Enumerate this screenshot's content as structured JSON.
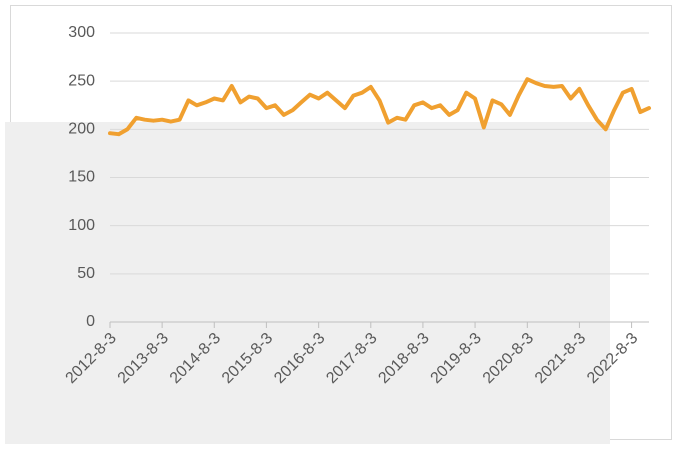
{
  "chart_data": {
    "type": "line",
    "x": [
      "2012-8-3",
      "2012-10-3",
      "2012-12-3",
      "2013-2-3",
      "2013-4-3",
      "2013-6-3",
      "2013-8-3",
      "2013-10-3",
      "2013-12-3",
      "2014-2-3",
      "2014-4-3",
      "2014-6-3",
      "2014-8-3",
      "2014-10-3",
      "2014-12-3",
      "2015-2-3",
      "2015-4-3",
      "2015-6-3",
      "2015-8-3",
      "2015-10-3",
      "2015-12-3",
      "2016-2-3",
      "2016-4-3",
      "2016-6-3",
      "2016-8-3",
      "2016-10-3",
      "2016-12-3",
      "2017-2-3",
      "2017-4-3",
      "2017-6-3",
      "2017-8-3",
      "2017-10-3",
      "2017-12-3",
      "2018-2-3",
      "2018-4-3",
      "2018-6-3",
      "2018-8-3",
      "2018-10-3",
      "2018-12-3",
      "2019-2-3",
      "2019-4-3",
      "2019-6-3",
      "2019-8-3",
      "2019-10-3",
      "2019-12-3",
      "2020-2-3",
      "2020-4-3",
      "2020-6-3",
      "2020-8-3",
      "2020-10-3",
      "2020-12-3",
      "2021-2-3",
      "2021-4-3",
      "2021-6-3",
      "2021-8-3",
      "2021-10-3",
      "2021-12-3",
      "2022-2-3",
      "2022-4-3",
      "2022-6-3",
      "2022-8-3",
      "2022-10-3",
      "2022-12-3"
    ],
    "series": [
      {
        "color": "#f0a030",
        "values": [
          196,
          195,
          200,
          212,
          210,
          209,
          210,
          208,
          210,
          230,
          225,
          228,
          232,
          230,
          245,
          228,
          234,
          232,
          222,
          225,
          215,
          220,
          228,
          236,
          232,
          238,
          230,
          222,
          235,
          238,
          244,
          230,
          207,
          212,
          210,
          225,
          228,
          222,
          225,
          215,
          220,
          238,
          232,
          202,
          230,
          226,
          215,
          235,
          252,
          248,
          245,
          244,
          245,
          232,
          242,
          225,
          210,
          200,
          220,
          238,
          242,
          218,
          222
        ]
      }
    ],
    "xlim": [
      "2012-8-3",
      "2022-12-3"
    ],
    "xticks": [
      "2012-8-3",
      "2013-8-3",
      "2014-8-3",
      "2015-8-3",
      "2016-8-3",
      "2017-8-3",
      "2018-8-3",
      "2019-8-3",
      "2020-8-3",
      "2021-8-3",
      "2022-8-3"
    ],
    "ylim": [
      0,
      300
    ],
    "yticks": [
      0,
      50,
      100,
      150,
      200,
      250,
      300
    ],
    "grid": true
  }
}
